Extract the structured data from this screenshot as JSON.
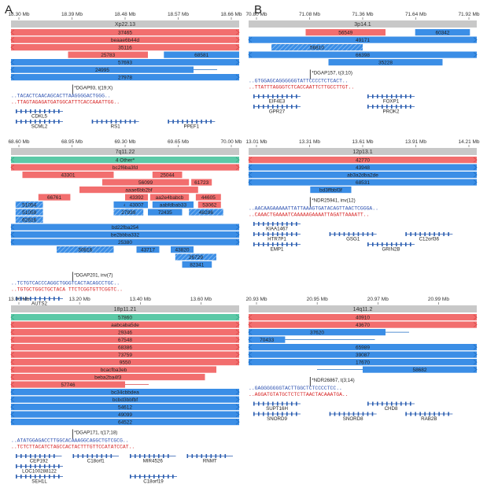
{
  "colors": {
    "red": "#f26e6e",
    "redDark": "#d94a4a",
    "blue": "#3b8ee6",
    "blueDark": "#1f6fc4",
    "green": "#5cc9a7",
    "gray": "#c8c8c8",
    "seqBlue": "#2a4fb0",
    "seqRed": "#d62222",
    "gene": "#2a5db0"
  },
  "panels": [
    {
      "key": "A1",
      "letter": "A",
      "ticks": [
        "18.30 Mb",
        "18.39 Mb",
        "18.48 Mb",
        "18.57 Mb",
        "18.66 Mb"
      ],
      "band": "Xp22.13",
      "reads": [
        {
          "c": "red",
          "label": "37465",
          "a": 0,
          "b": 1,
          "dir": "both"
        },
        {
          "c": "red",
          "label": "beaae6b44d",
          "a": 0,
          "b": 1,
          "dir": "both"
        },
        {
          "c": "red",
          "label": "35116",
          "a": 0,
          "b": 1,
          "dir": "both"
        },
        {
          "c": "red",
          "segs": [
            [
              0.25,
              0.6,
              "25783"
            ],
            [
              0.67,
              1,
              "68581",
              "blue"
            ]
          ]
        },
        {
          "c": "blue",
          "label": "57693",
          "a": 0,
          "b": 1,
          "dir": "both"
        },
        {
          "c": "blue",
          "label": "24995",
          "a": 0,
          "b": 0.8,
          "dir": "left",
          "tail": 0.8
        },
        {
          "c": "blue",
          "label": "27978",
          "a": 0,
          "b": 1,
          "dir": "both"
        }
      ],
      "bp": {
        "label": "*DGAP93, t(19;X)"
      },
      "seq1": "..TACACTCAACAG",
      "seq1b": "CACTTAAGGGGACTGGG..",
      "seq2": "..TTAGTAGAGATG",
      "seq2b": "ATGGCATTTCACCAAATTGG..",
      "genes": [
        {
          "label": "CDKL5",
          "row": 0
        },
        {
          "label": "SCML2",
          "row": 1
        },
        {
          "label": "RS1",
          "row": 1
        },
        {
          "label": "PPEF1",
          "row": 1
        }
      ]
    },
    {
      "key": "B1",
      "letter": "B",
      "ticks": [
        "70.80 Mb",
        "71.08 Mb",
        "71.36 Mb",
        "71.64 Mb",
        "71.92 Mb"
      ],
      "band": "3p14.1",
      "reads": [
        {
          "c": "red",
          "segs": [
            [
              0.25,
              0.6,
              "56549",
              "red"
            ],
            [
              0.73,
              0.97,
              "60342",
              "blue"
            ]
          ]
        },
        {
          "c": "blue",
          "label": "49171",
          "a": 0,
          "b": 1,
          "dir": "both"
        },
        {
          "c": "blue",
          "label": "56810",
          "a": 0.1,
          "b": 0.5,
          "hatch": true
        },
        {
          "c": "blue",
          "label": "66398",
          "a": 0,
          "b": 1,
          "dir": "both"
        },
        {
          "c": "blue",
          "label": "35228",
          "a": 0.35,
          "b": 0.85,
          "dir": "none"
        }
      ],
      "bp": {
        "label": "*DGAP157, t(3;10)"
      },
      "seq1": "..GTGGAGCAGGGGGG",
      "seq1b": "TATTCCCCTCTCACT..",
      "seq2": "..TTATTTAGGGTCTCAC",
      "seq2b": "CAATTCTTGCCTTGT..",
      "genes": [
        {
          "label": "EIF4E3",
          "row": 0
        },
        {
          "label": "FOXP1",
          "row": 0
        },
        {
          "label": "GPR27",
          "row": 1
        },
        {
          "label": "PROK2",
          "row": 1
        }
      ]
    },
    {
      "key": "A2",
      "ticks": [
        "68.60 Mb",
        "68.95 Mb",
        "69.30 Mb",
        "69.65 Mb",
        "70.00 Mb"
      ],
      "band": "7q11.22",
      "reads": [
        {
          "c": "green",
          "label": "4 Other*",
          "a": 0,
          "b": 1,
          "dir": "both"
        },
        {
          "c": "red",
          "label": "bc2f6ba3fd",
          "a": 0,
          "b": 1,
          "dir": "both"
        },
        {
          "c": "red",
          "segs": [
            [
              0.05,
              0.45,
              "43301",
              "red"
            ],
            [
              0.62,
              0.75,
              "25044",
              "red"
            ]
          ]
        },
        {
          "c": "red",
          "segs": [
            [
              0.4,
              0.78,
              "56099",
              "red"
            ],
            [
              0.79,
              0.88,
              "61723",
              "red"
            ]
          ]
        },
        {
          "c": "red",
          "segs": [
            [
              0.3,
              0.82,
              "aaae6bb2bf",
              "red"
            ]
          ]
        },
        {
          "c": "red",
          "segs": [
            [
              0.12,
              0.26,
              "66761",
              "red"
            ],
            [
              0.5,
              0.6,
              "43392",
              "red"
            ],
            [
              0.61,
              0.78,
              "aa2e4babcb",
              "red"
            ],
            [
              0.81,
              0.92,
              "44605",
              "red"
            ]
          ]
        },
        {
          "c": "blue",
          "segs": [
            [
              0.02,
              0.14,
              "51054",
              "hatch"
            ],
            [
              0.45,
              0.6,
              "43820",
              "none"
            ],
            [
              0.5,
              0.6,
              "43007",
              "none"
            ],
            [
              0.62,
              0.8,
              "aabfdbab33",
              "none"
            ],
            [
              0.82,
              0.92,
              "53062",
              "red"
            ]
          ]
        },
        {
          "c": "blue",
          "segs": [
            [
              0.02,
              0.14,
              "51059",
              "hatch"
            ],
            [
              0.45,
              0.58,
              "27939",
              "hatch"
            ],
            [
              0.6,
              0.75,
              "72435",
              "none"
            ],
            [
              0.78,
              0.93,
              "48296",
              "hatch"
            ]
          ]
        },
        {
          "c": "blue",
          "segs": [
            [
              0.02,
              0.14,
              "62816",
              "hatch"
            ]
          ]
        },
        {
          "c": "blue",
          "label": "bd22fba254",
          "a": 0,
          "b": 1,
          "dir": "both"
        },
        {
          "c": "blue",
          "label": "be2bbba332",
          "a": 0,
          "b": 1,
          "dir": "both"
        },
        {
          "c": "blue",
          "label": "25380",
          "a": 0,
          "b": 1,
          "dir": "both"
        },
        {
          "c": "blue",
          "segs": [
            [
              0.2,
              0.45,
              "30816",
              "hatch"
            ],
            [
              0.55,
              0.65,
              "43717",
              "blue"
            ],
            [
              0.7,
              0.8,
              "43820",
              "none"
            ]
          ]
        },
        {
          "c": "blue",
          "segs": [
            [
              0.72,
              0.9,
              "26729",
              "hatch"
            ]
          ]
        },
        {
          "c": "blue",
          "segs": [
            [
              0.75,
              0.88,
              "82341",
              "blue"
            ]
          ]
        }
      ],
      "bp": {
        "label": "*DGAP201, inv(7)"
      },
      "seq1": "..TCTGTCACCCAGGCTG",
      "seq1b": "GGTCACTACAGCCTGC..",
      "seq2": "..TGTGCTGGCTGCT",
      "seq2b": "ACA TTCTCGGTGTTCGGTC..",
      "genes": [
        {
          "label": "AUTS2",
          "row": 0
        }
      ]
    },
    {
      "key": "B2",
      "ticks": [
        "13.01 Mb",
        "13.31 Mb",
        "13.61 Mb",
        "13.91 Mb",
        "14.21 Mb"
      ],
      "band": "12p13.1",
      "reads": [
        {
          "c": "red",
          "label": "42770",
          "a": 0,
          "b": 1,
          "dir": "both"
        },
        {
          "c": "blue",
          "label": "43948",
          "a": 0,
          "b": 1,
          "dir": "both"
        },
        {
          "c": "blue",
          "label": "ab3a2dba2de",
          "a": 0,
          "b": 1,
          "dir": "both"
        },
        {
          "c": "blue",
          "label": "68531",
          "a": 0,
          "b": 1,
          "dir": "both"
        },
        {
          "c": "blue",
          "label": "bd3ffbbf3f",
          "a": 0.27,
          "b": 0.45,
          "dir": "none"
        }
      ],
      "bp": {
        "label": "*NDR25941, inv(12)"
      },
      "seq1": "..AACAAGAAAAATTATTAAA",
      "seq1b": "GTGATACAGTTAACTCGGGA..",
      "seq2": "..CAAACTGAAAATCAAAA",
      "seq2b": "AGAAAATTAGATTAAAATT..",
      "genes": [
        {
          "label": "KIAA1467",
          "row": 0
        },
        {
          "label": "HTR7P1",
          "row": 1
        },
        {
          "label": "GSG1",
          "row": 1
        },
        {
          "label": "C12orf36",
          "row": 1
        },
        {
          "label": "EMP1",
          "row": 2
        },
        {
          "label": "GRIN2B",
          "row": 2
        }
      ]
    },
    {
      "key": "A3",
      "ticks": [
        "13.00 Mb",
        "13.20 Mb",
        "13.40 Mb",
        "13.60 Mb"
      ],
      "band": "18p11.21",
      "reads": [
        {
          "c": "green",
          "label": "57860",
          "a": 0,
          "b": 1,
          "dir": "both"
        },
        {
          "c": "red",
          "label": "aabcaba5de",
          "a": 0,
          "b": 1,
          "dir": "both"
        },
        {
          "c": "red",
          "label": "29346",
          "a": 0,
          "b": 1,
          "dir": "both"
        },
        {
          "c": "red",
          "label": "67548",
          "a": 0,
          "b": 1,
          "dir": "both"
        },
        {
          "c": "red",
          "label": "68386",
          "a": 0,
          "b": 1,
          "dir": "both"
        },
        {
          "c": "red",
          "label": "73759",
          "a": 0,
          "b": 1,
          "dir": "both"
        },
        {
          "c": "red",
          "label": "9550",
          "a": 0,
          "b": 1,
          "dir": "both"
        },
        {
          "c": "red",
          "label": "bcacfba3eb",
          "a": 0,
          "b": 0.9,
          "dir": "left"
        },
        {
          "c": "red",
          "label": "beba2ba4f3",
          "a": 0,
          "b": 0.85,
          "dir": "left"
        },
        {
          "c": "red",
          "label": "57746",
          "a": 0,
          "b": 0.5,
          "dir": "left",
          "tail": 0.5
        },
        {
          "c": "blue",
          "label": "bc34cbbdea",
          "a": 0,
          "b": 1,
          "dir": "both"
        },
        {
          "c": "blue",
          "label": "bcbd3bbfbf",
          "a": 0,
          "b": 1,
          "dir": "both"
        },
        {
          "c": "blue",
          "label": "54612",
          "a": 0,
          "b": 1,
          "dir": "both"
        },
        {
          "c": "blue",
          "label": "49099",
          "a": 0,
          "b": 1,
          "dir": "both"
        },
        {
          "c": "blue",
          "label": "64522",
          "a": 0,
          "b": 1,
          "dir": "both"
        }
      ],
      "bp": {
        "label": "*DGAP171, t(17;18)"
      },
      "seq1": "..ATATGGAGACCTTGGCA",
      "seq1b": "CAAAGGCAGGCTGTCGCG..",
      "seq2": "..TCTCTTACATCTAGCCACT",
      "seq2b": "ACTTTGTTCCATATCCAT..",
      "genes": [
        {
          "label": "CEP192",
          "row": 0
        },
        {
          "label": "C18orf1",
          "row": 0
        },
        {
          "label": "MIR4526",
          "row": 0
        },
        {
          "label": "RNMT",
          "row": 0
        },
        {
          "label": "LOC100288122",
          "row": 1
        },
        {
          "label": "SEH1L",
          "row": 2
        },
        {
          "label": "C18orf19",
          "row": 2
        }
      ]
    },
    {
      "key": "B3",
      "ticks": [
        "20.93 Mb",
        "20.95 Mb",
        "20.97 Mb",
        "20.99 Mb"
      ],
      "band": "14q11.2",
      "reads": [
        {
          "c": "red",
          "label": "40910",
          "a": 0,
          "b": 1,
          "dir": "both"
        },
        {
          "c": "red",
          "label": "43670",
          "a": 0,
          "b": 1,
          "dir": "both"
        },
        {
          "c": "blue",
          "label": "37620",
          "a": 0,
          "b": 0.6,
          "dir": "left",
          "tail": 0.6
        },
        {
          "c": "blue",
          "label": "70433",
          "a": 0,
          "b": 0.16,
          "dir": "left",
          "tail": 0.45
        },
        {
          "c": "blue",
          "label": "65989",
          "a": 0,
          "b": 1,
          "dir": "both"
        },
        {
          "c": "blue",
          "label": "39087",
          "a": 0,
          "b": 1,
          "dir": "both"
        },
        {
          "c": "blue",
          "label": "17670",
          "a": 0,
          "b": 1,
          "dir": "both"
        },
        {
          "c": "blue",
          "label": "58682",
          "a": 0.5,
          "b": 1,
          "dir": "right",
          "tailStart": 0.3
        }
      ],
      "bp": {
        "label": "*NDR26867, t(3;14)"
      },
      "seq1": "..GAGGGGGGGTACT",
      "seq1b": "TGGCTCTCCCCTCC..",
      "seq2": "..AGGATGTATGCTCT",
      "seq2b": "CTTAACTACAAATGA..",
      "genes": [
        {
          "label": "SUPT16H",
          "row": 0
        },
        {
          "label": "CHD8",
          "row": 0
        },
        {
          "label": "SNORD9",
          "row": 1
        },
        {
          "label": "SNORD8",
          "row": 1
        },
        {
          "label": "RAB2B",
          "row": 1
        }
      ]
    }
  ]
}
